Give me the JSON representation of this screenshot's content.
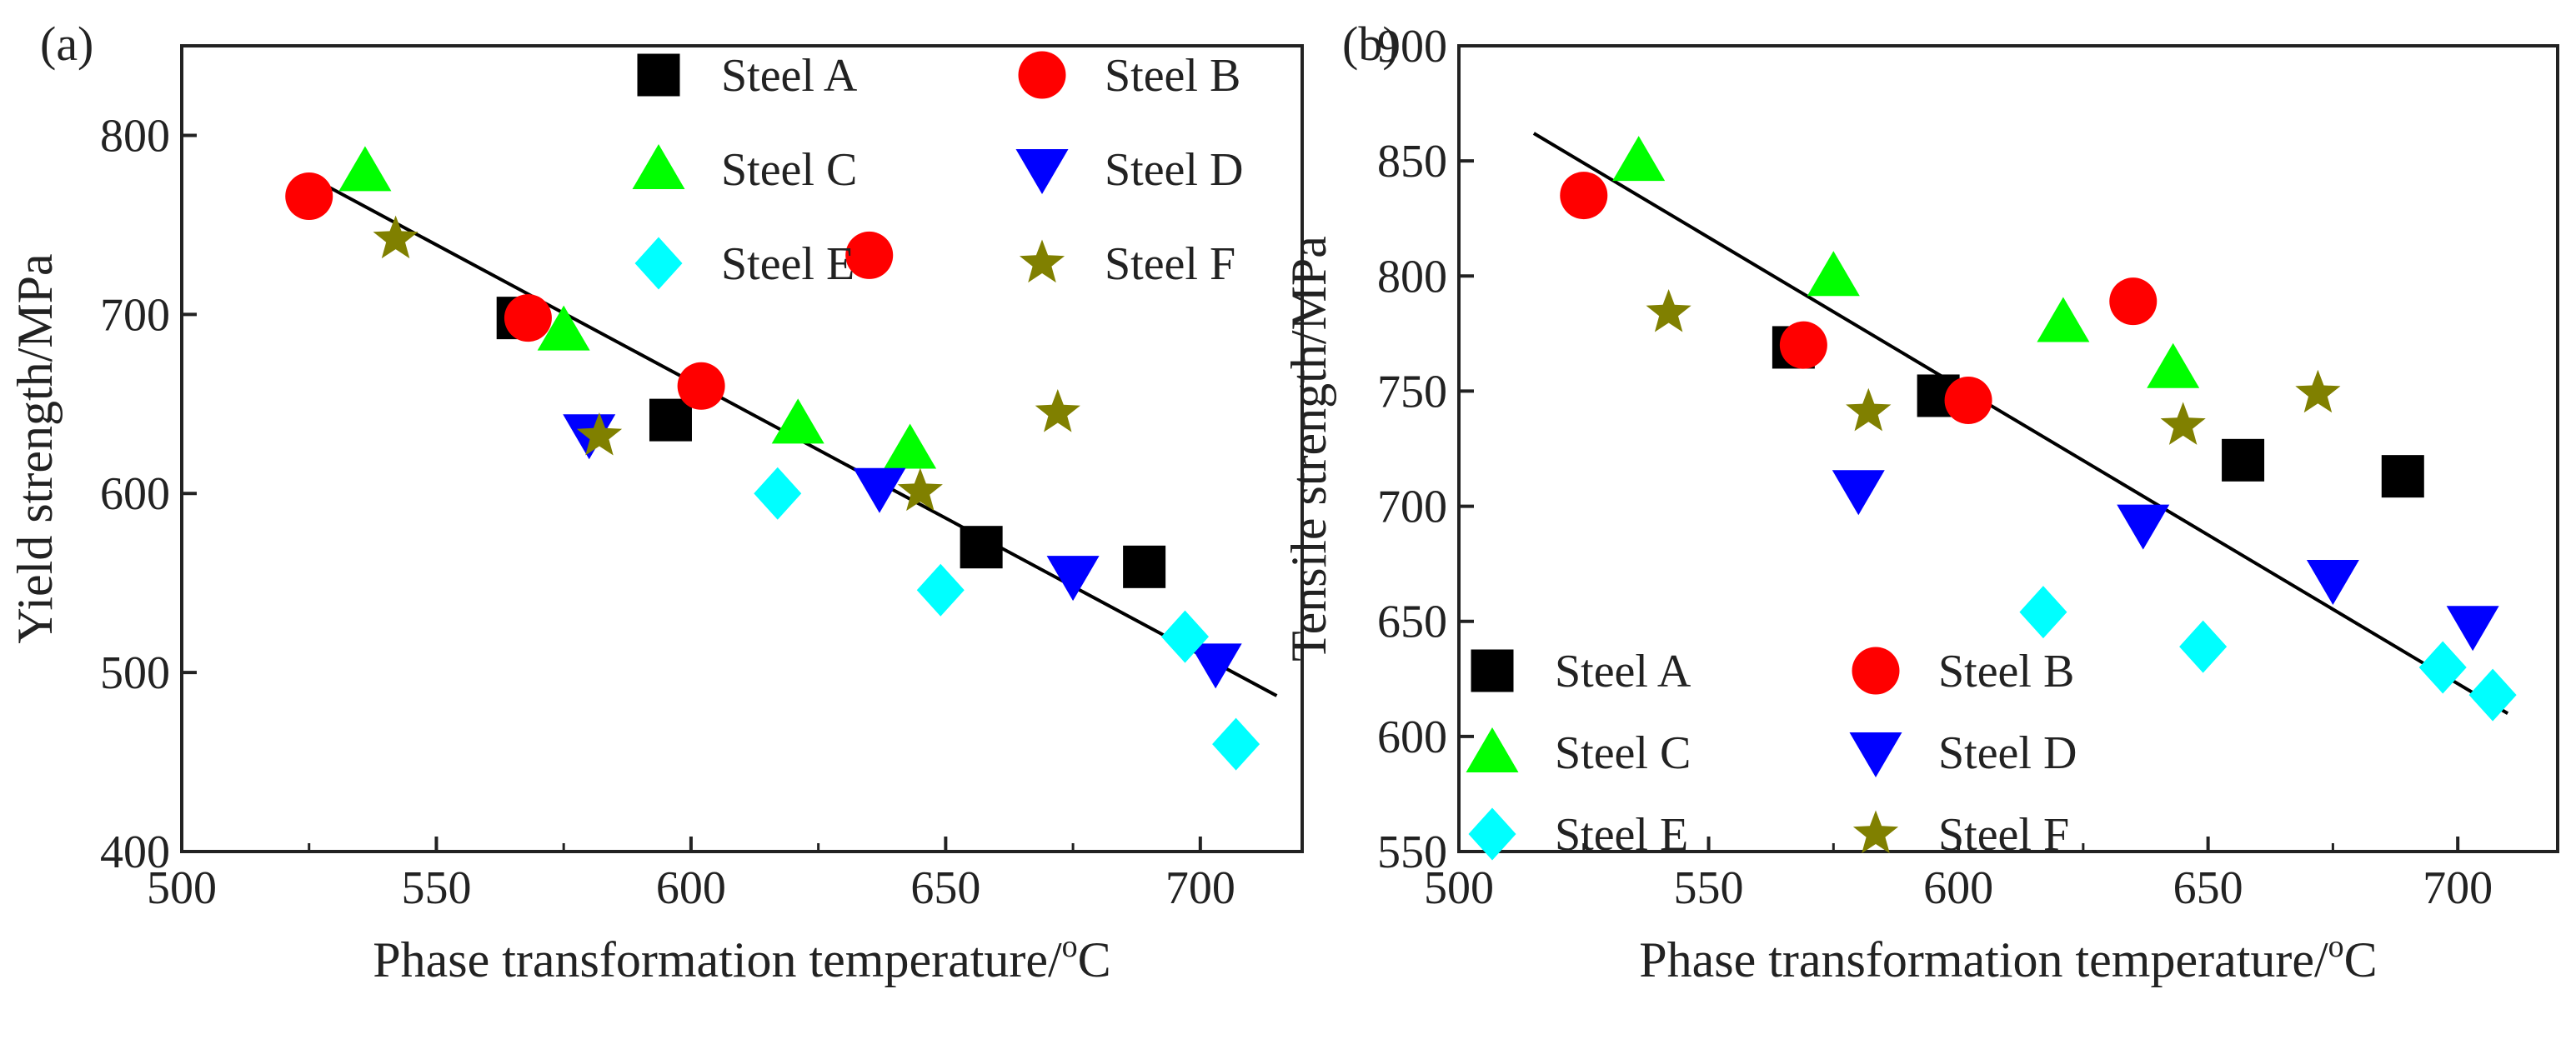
{
  "chart_data": [
    {
      "panel_label": "(a)",
      "type": "scatter",
      "xlabel_prefix": "Phase transformation temperature/",
      "xlabel_sup": "o",
      "xlabel_unit": "C",
      "ylabel": "Yield strength/MPa",
      "xlim": [
        500,
        720
      ],
      "ylim": [
        400,
        850
      ],
      "xticks": [
        500,
        550,
        600,
        650,
        700
      ],
      "yticks": [
        400,
        500,
        600,
        700,
        800
      ],
      "legend_position": "top-right",
      "fit_line": {
        "x": [
          525,
          715
        ],
        "y": [
          777,
          487
        ]
      },
      "series": [
        {
          "name": "Steel A",
          "marker": "square",
          "color": "#000000",
          "x": [
            566,
            596,
            657,
            689
          ],
          "y": [
            698,
            641,
            570,
            559
          ]
        },
        {
          "name": "Steel B",
          "marker": "circle",
          "color": "#ff0000",
          "x": [
            525,
            568,
            602,
            635
          ],
          "y": [
            766,
            698,
            660,
            733
          ]
        },
        {
          "name": "Steel C",
          "marker": "triangle-up",
          "color": "#00ff00",
          "x": [
            536,
            575,
            621,
            643
          ],
          "y": [
            780,
            691,
            639,
            625
          ]
        },
        {
          "name": "Steel D",
          "marker": "triangle-down",
          "color": "#0000ff",
          "x": [
            580,
            637,
            675,
            703
          ],
          "y": [
            633,
            603,
            554,
            505
          ]
        },
        {
          "name": "Steel E",
          "marker": "diamond",
          "color": "#00ffff",
          "x": [
            617,
            649,
            697,
            707
          ],
          "y": [
            600,
            546,
            520,
            460
          ]
        },
        {
          "name": "Steel F",
          "marker": "star",
          "color": "#808000",
          "x": [
            542,
            582,
            645,
            672
          ],
          "y": [
            742,
            632,
            601,
            645
          ]
        }
      ]
    },
    {
      "panel_label": "(b)",
      "type": "scatter",
      "xlabel_prefix": "Phase transformation temperature/",
      "xlabel_sup": "o",
      "xlabel_unit": "C",
      "ylabel": "Tensile strength/MPa",
      "xlim": [
        500,
        720
      ],
      "ylim": [
        550,
        900
      ],
      "xticks": [
        500,
        550,
        600,
        650,
        700
      ],
      "yticks": [
        550,
        600,
        650,
        700,
        750,
        800,
        850,
        900
      ],
      "legend_position": "bottom-left",
      "fit_line": {
        "x": [
          515,
          710
        ],
        "y": [
          862,
          610
        ]
      },
      "series": [
        {
          "name": "Steel A",
          "marker": "square",
          "color": "#000000",
          "x": [
            567,
            596,
            657,
            689
          ],
          "y": [
            769,
            748,
            720,
            713
          ]
        },
        {
          "name": "Steel B",
          "marker": "circle",
          "color": "#ff0000",
          "x": [
            525,
            569,
            602,
            635
          ],
          "y": [
            835,
            770,
            746,
            789
          ]
        },
        {
          "name": "Steel C",
          "marker": "triangle-up",
          "color": "#00ff00",
          "x": [
            536,
            575,
            621,
            643
          ],
          "y": [
            850,
            800,
            780,
            760
          ]
        },
        {
          "name": "Steel D",
          "marker": "triangle-down",
          "color": "#0000ff",
          "x": [
            580,
            637,
            675,
            703
          ],
          "y": [
            707,
            692,
            668,
            648
          ]
        },
        {
          "name": "Steel E",
          "marker": "diamond",
          "color": "#00ffff",
          "x": [
            617,
            649,
            697,
            707
          ],
          "y": [
            654,
            639,
            630,
            618
          ]
        },
        {
          "name": "Steel F",
          "marker": "star",
          "color": "#808000",
          "x": [
            542,
            582,
            645,
            672
          ],
          "y": [
            784,
            741,
            735,
            749
          ]
        }
      ]
    }
  ]
}
